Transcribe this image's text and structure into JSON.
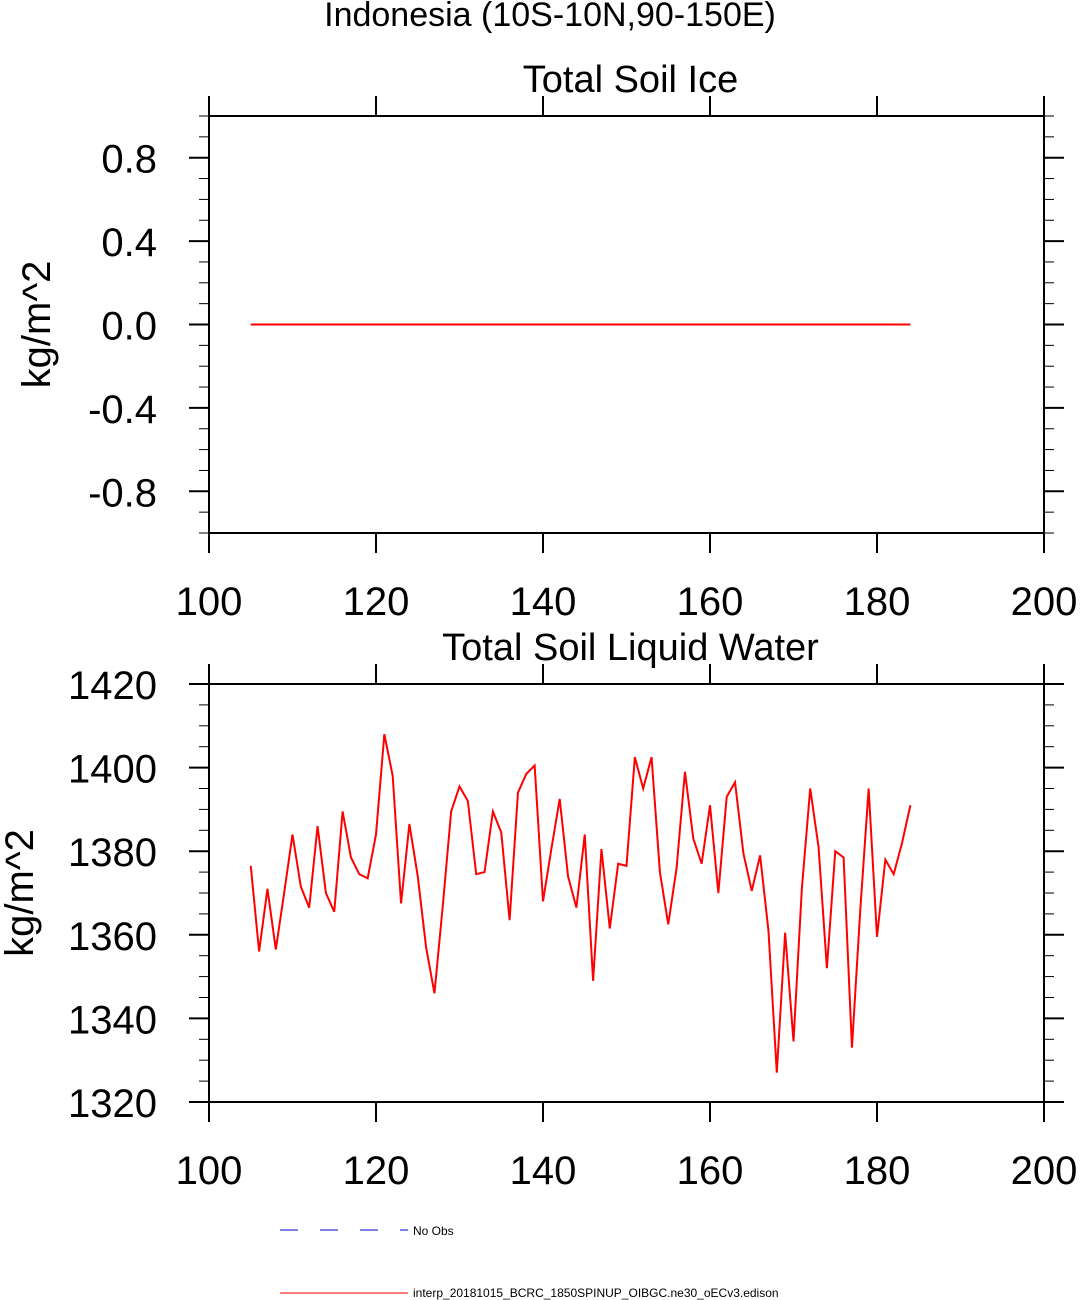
{
  "title": "Indonesia (10S-10N,90-150E)",
  "chart_data": [
    {
      "type": "line",
      "title": "Total Soil Ice",
      "xlabel": "",
      "ylabel": "kg/m^2",
      "xlim": [
        100,
        200
      ],
      "ylim": [
        -1.0,
        1.0
      ],
      "xticks": [
        "100",
        "120",
        "140",
        "160",
        "180",
        "200"
      ],
      "yticks": [
        "0.8",
        "0.4",
        "0.0",
        "-0.4",
        "-0.8"
      ],
      "grid": false,
      "series": [
        {
          "name": "interp_20181015_BCRC_1850SPINUP_OIBGC.ne30_oECv3.edison",
          "color": "#ff0000",
          "x": [
            105,
            184
          ],
          "y": [
            0.0,
            0.0
          ]
        }
      ]
    },
    {
      "type": "line",
      "title": "Total Soil Liquid Water",
      "xlabel": "",
      "ylabel": "kg/m^2",
      "xlim": [
        100,
        200
      ],
      "ylim": [
        1320,
        1420
      ],
      "xticks": [
        "100",
        "120",
        "140",
        "160",
        "180",
        "200"
      ],
      "yticks": [
        "1420",
        "1400",
        "1380",
        "1360",
        "1340",
        "1320"
      ],
      "grid": false,
      "series": [
        {
          "name": "interp_20181015_BCRC_1850SPINUP_OIBGC.ne30_oECv3.edison",
          "color": "#ff0000",
          "x": [
            105,
            106,
            107,
            108,
            109,
            110,
            111,
            112,
            113,
            114,
            115,
            116,
            117,
            118,
            119,
            120,
            121,
            122,
            123,
            124,
            125,
            126,
            127,
            128,
            129,
            130,
            131,
            132,
            133,
            134,
            135,
            136,
            137,
            138,
            139,
            140,
            141,
            142,
            143,
            144,
            145,
            146,
            147,
            148,
            149,
            150,
            151,
            152,
            153,
            154,
            155,
            156,
            157,
            158,
            159,
            160,
            161,
            162,
            163,
            164,
            165,
            166,
            167,
            168,
            169,
            170,
            171,
            172,
            173,
            174,
            175,
            176,
            177,
            178,
            179,
            180,
            181,
            182,
            183,
            184
          ],
          "y": [
            1376.5,
            1356,
            1371,
            1356.5,
            1370,
            1384,
            1371.5,
            1366.5,
            1386,
            1370,
            1365.5,
            1389.5,
            1378.5,
            1374.5,
            1373.5,
            1384,
            1408,
            1398,
            1367.5,
            1386.5,
            1374,
            1357,
            1346,
            1367,
            1389.5,
            1395.5,
            1392,
            1374.5,
            1375,
            1389.5,
            1384.5,
            1363.5,
            1394,
            1398.5,
            1400.5,
            1368,
            1380.5,
            1392.5,
            1374,
            1366.5,
            1384,
            1349,
            1380.5,
            1361.5,
            1377,
            1376.5,
            1402.5,
            1395,
            1402.5,
            1375,
            1362.5,
            1376,
            1399,
            1383,
            1377,
            1391,
            1370,
            1393,
            1396.5,
            1379.5,
            1370.5,
            1379,
            1361,
            1327,
            1360.5,
            1334.5,
            1371,
            1395,
            1381,
            1352,
            1380,
            1378.5,
            1333,
            1366,
            1395,
            1359.5,
            1378,
            1374.5,
            1382,
            1391
          ]
        }
      ]
    }
  ],
  "legend": {
    "placement": "bottom-center",
    "entries": [
      {
        "label": "No Obs",
        "color": "#0000cc",
        "style": "dashed"
      },
      {
        "label": "interp_20181015_BCRC_1850SPINUP_OIBGC.ne30_oECv3.edison",
        "color": "#ff0000",
        "style": "solid"
      }
    ]
  }
}
